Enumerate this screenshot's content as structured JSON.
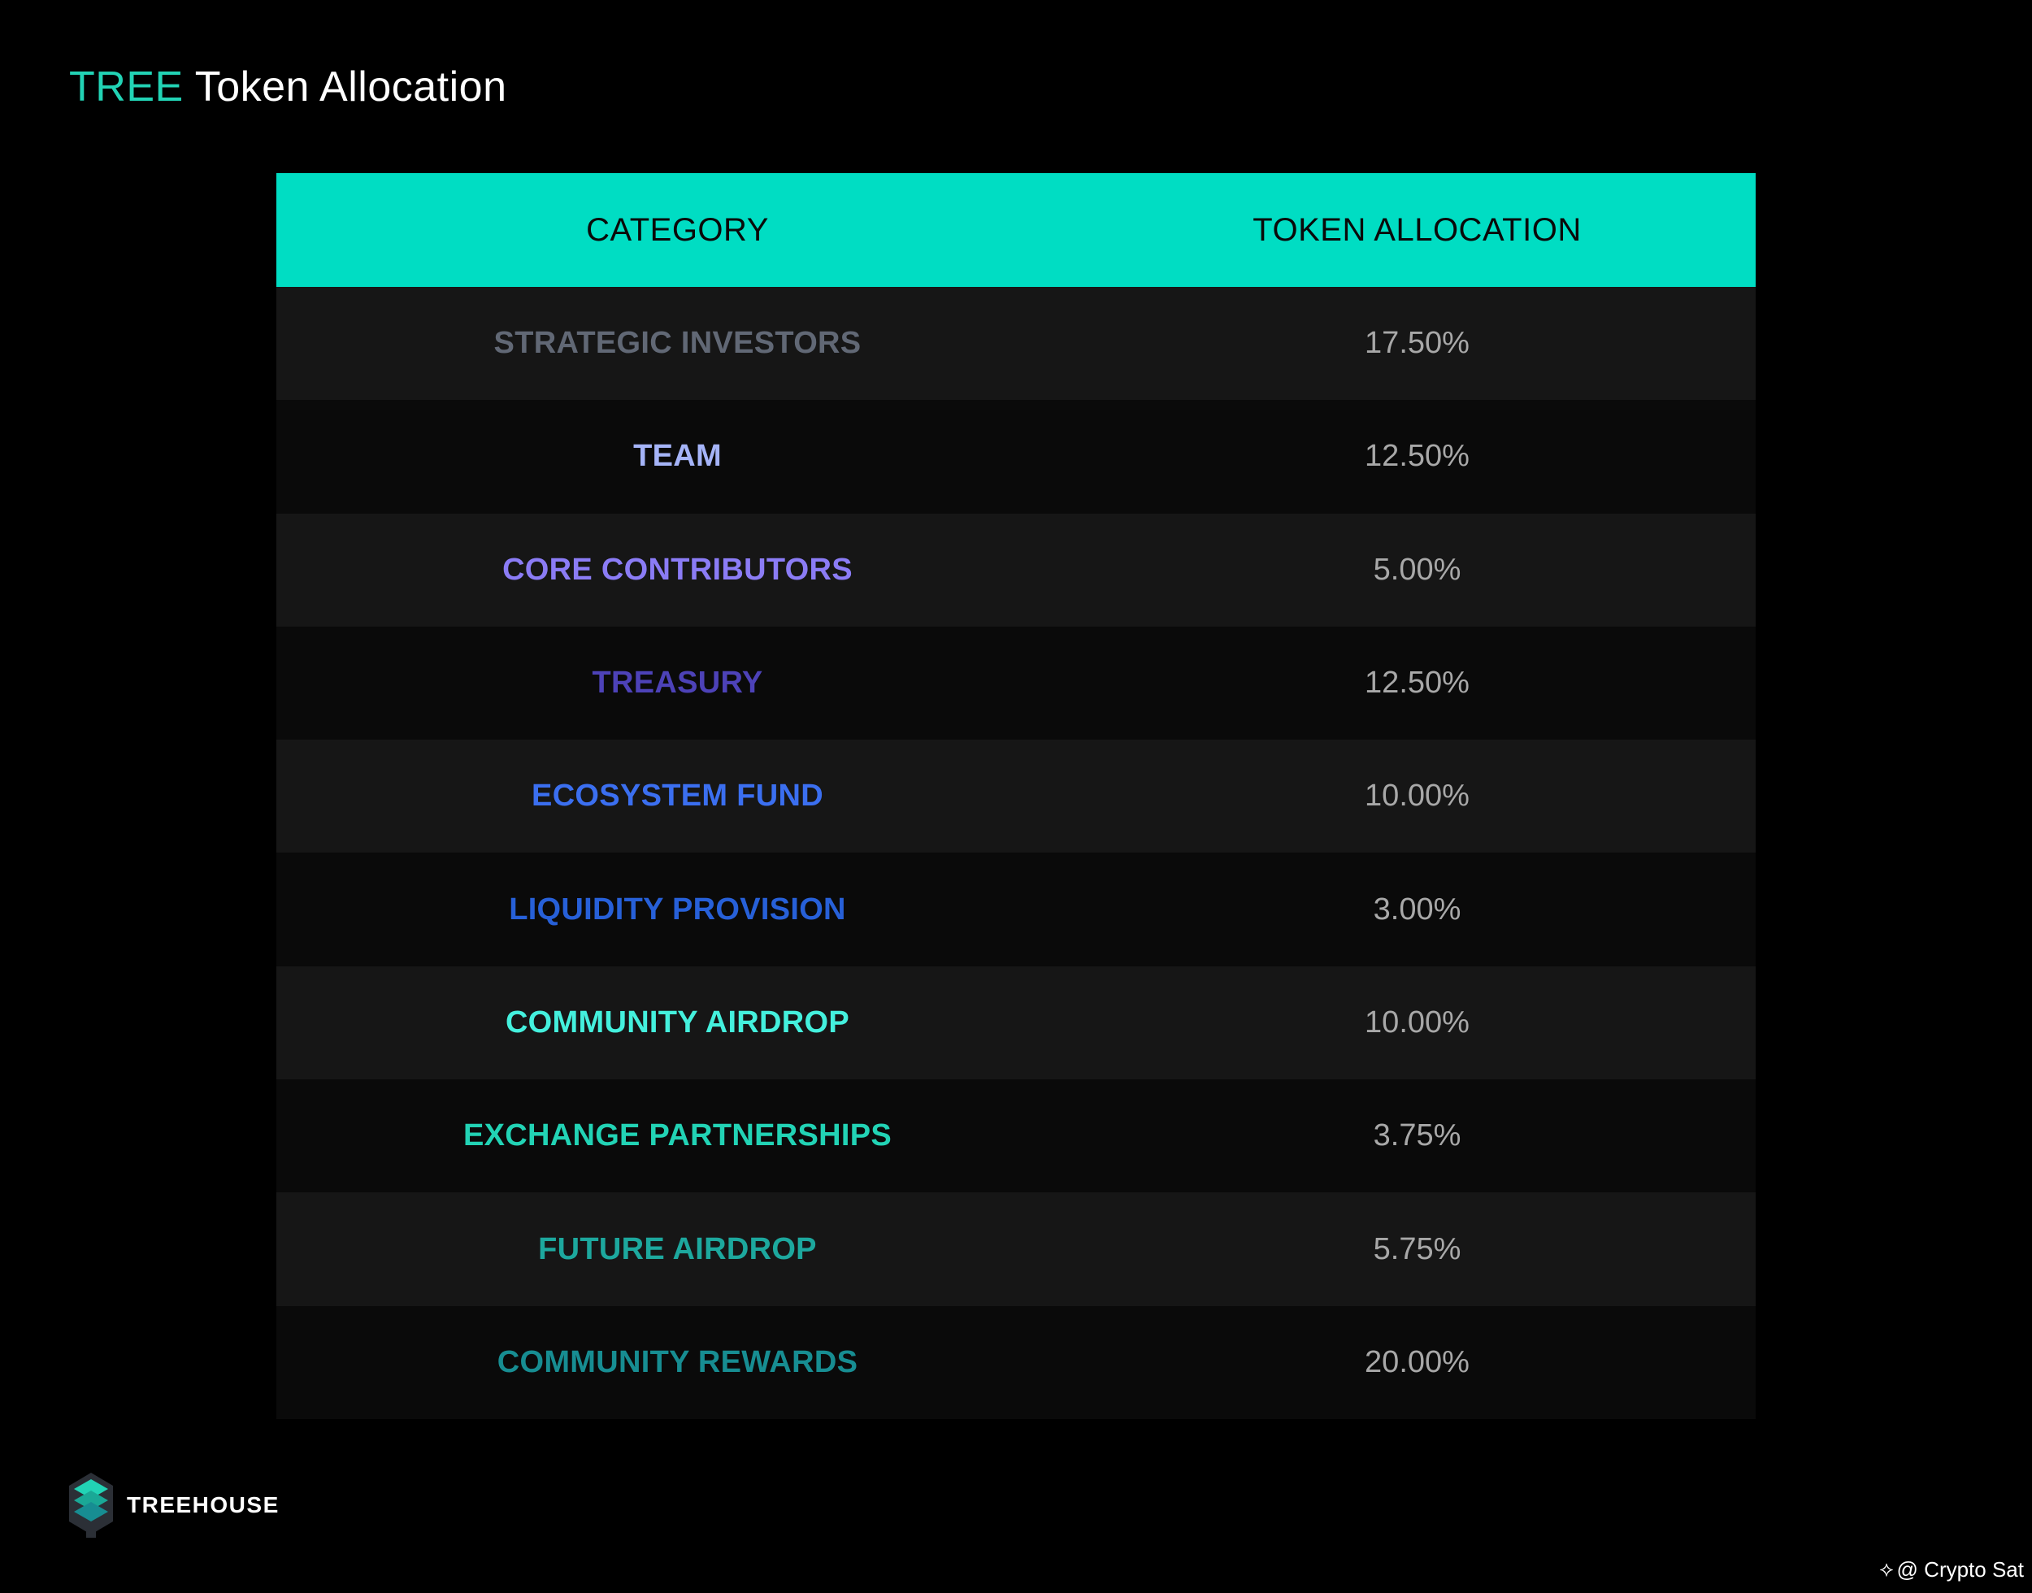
{
  "title": {
    "brand": "TREE",
    "rest": "Token Allocation"
  },
  "table": {
    "headers": {
      "category": "CATEGORY",
      "allocation": "TOKEN ALLOCATION"
    },
    "rows": [
      {
        "category": "STRATEGIC INVESTORS",
        "allocation": "17.50%",
        "color": "#616875"
      },
      {
        "category": "TEAM",
        "allocation": "12.50%",
        "color": "#a5b4f8"
      },
      {
        "category": "CORE CONTRIBUTORS",
        "allocation": "5.00%",
        "color": "#8b7cf5"
      },
      {
        "category": "TREASURY",
        "allocation": "12.50%",
        "color": "#4d42b8"
      },
      {
        "category": "ECOSYSTEM FUND",
        "allocation": "10.00%",
        "color": "#3b6ff0"
      },
      {
        "category": "LIQUIDITY PROVISION",
        "allocation": "3.00%",
        "color": "#2760d8"
      },
      {
        "category": "COMMUNITY AIRDROP",
        "allocation": "10.00%",
        "color": "#44f0dd"
      },
      {
        "category": "EXCHANGE PARTNERSHIPS",
        "allocation": "3.75%",
        "color": "#22d3b5"
      },
      {
        "category": "FUTURE AIRDROP",
        "allocation": "5.75%",
        "color": "#1da89e"
      },
      {
        "category": "COMMUNITY REWARDS",
        "allocation": "20.00%",
        "color": "#178d92"
      }
    ]
  },
  "logo": {
    "icon": "treehouse-logo-icon",
    "text": "TREEHOUSE"
  },
  "watermark": {
    "icon": "binance-square-icon",
    "text": "@ Crypto Sat"
  },
  "colors": {
    "accent": "#00ddc3",
    "background": "#000000",
    "row_light": "#161616",
    "row_dark": "#0a0a0a"
  }
}
